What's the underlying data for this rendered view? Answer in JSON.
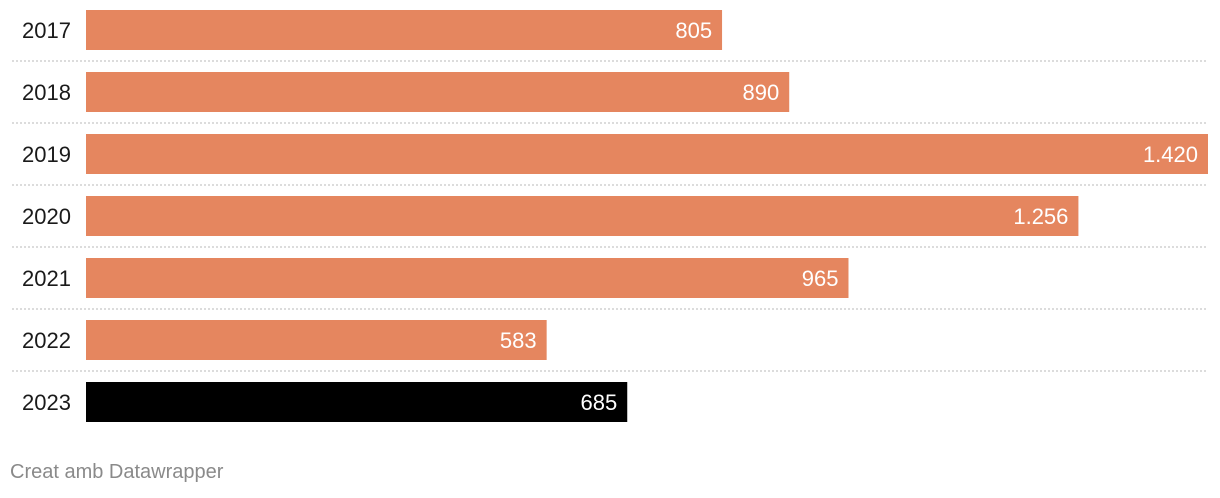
{
  "chart_data": {
    "type": "bar",
    "orientation": "horizontal",
    "categories": [
      "2017",
      "2018",
      "2019",
      "2020",
      "2021",
      "2022",
      "2023"
    ],
    "values": [
      805,
      890,
      1420,
      1256,
      965,
      583,
      685
    ],
    "value_labels": [
      "805",
      "890",
      "1.420",
      "1.256",
      "965",
      "583",
      "685"
    ],
    "xlim": [
      0,
      1420
    ],
    "grid": false,
    "bar_color": "#e5865f",
    "highlight_color": "#000000",
    "highlight_index": 6
  },
  "footer": {
    "credit": "Creat amb Datawrapper"
  }
}
